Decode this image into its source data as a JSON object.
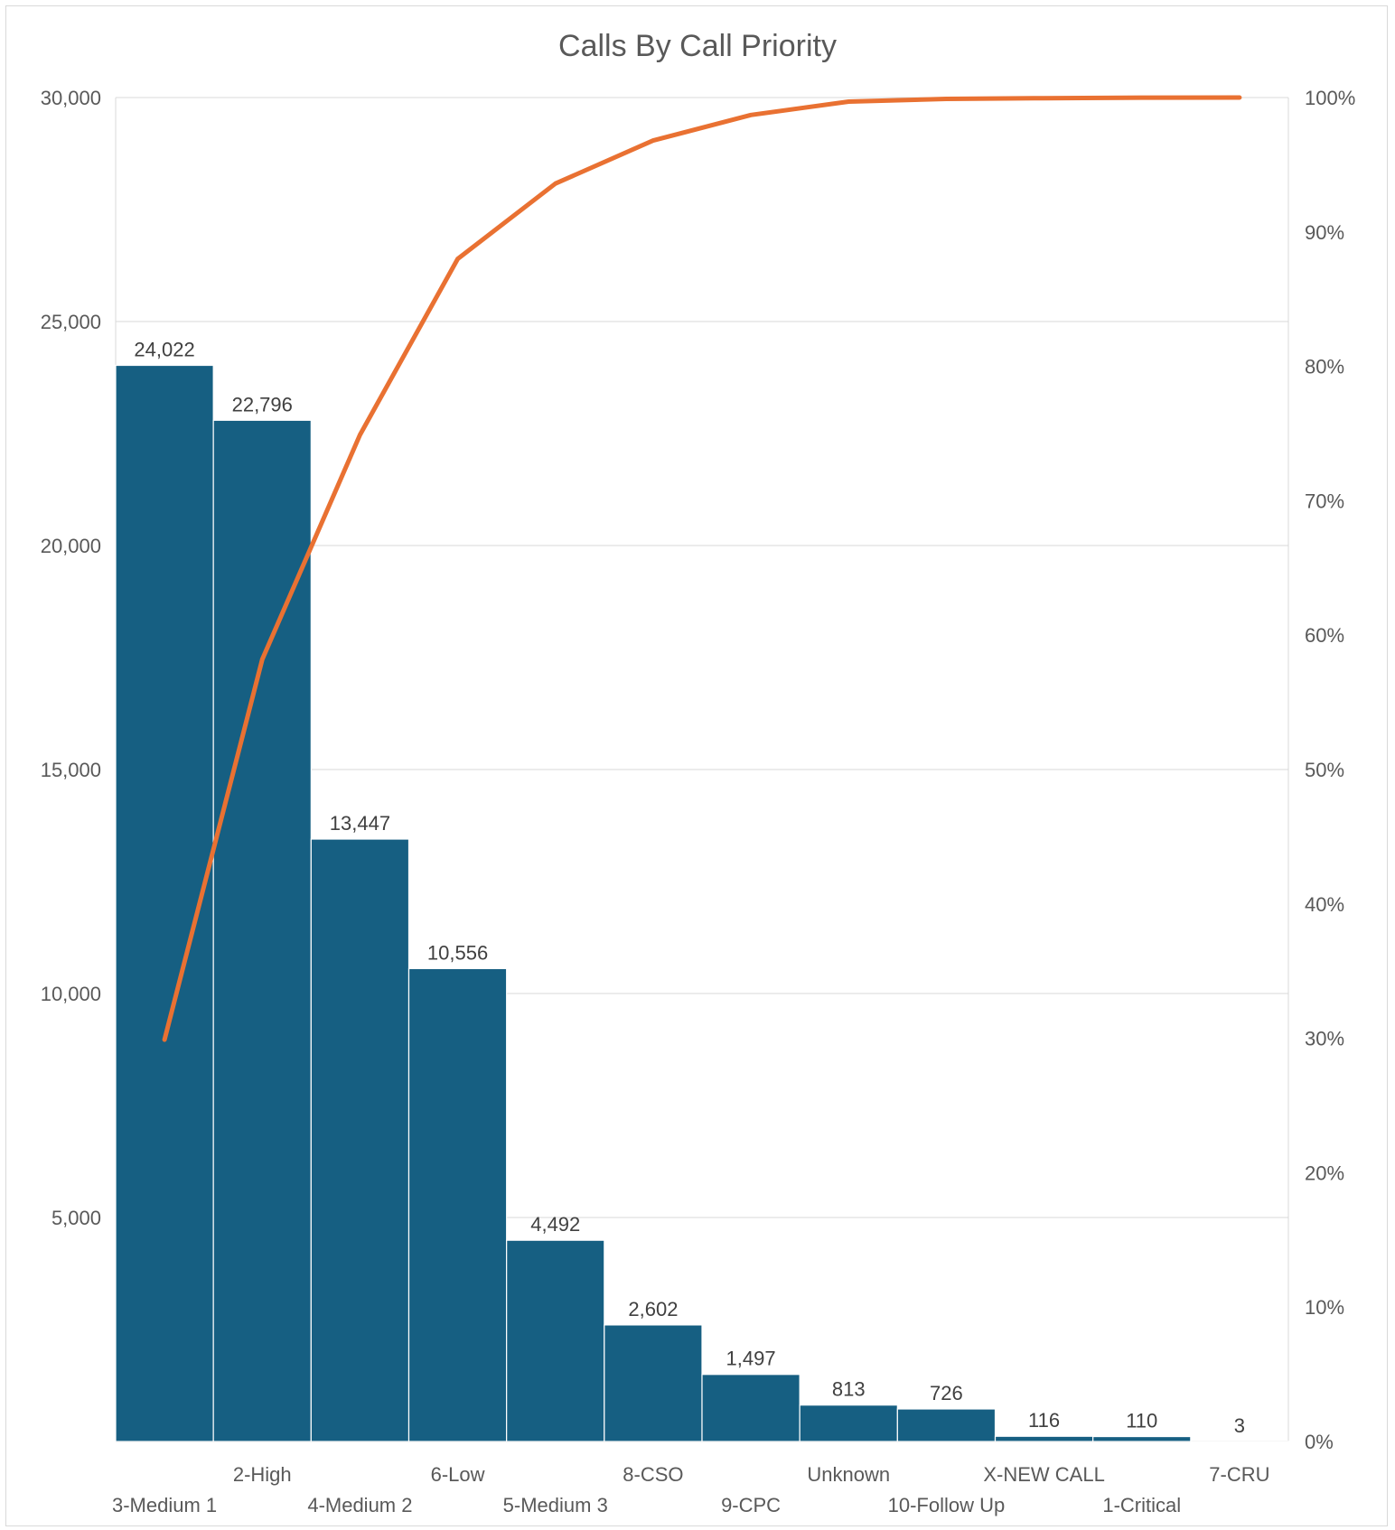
{
  "chart_data": {
    "type": "bar",
    "title": "Calls By Call Priority",
    "categories": [
      "3-Medium 1",
      "2-High",
      "4-Medium 2",
      "6-Low",
      "5-Medium 3",
      "8-CSO",
      "9-CPC",
      "Unknown",
      "10-Follow Up",
      "X-NEW CALL",
      "1-Critical",
      "7-CRU"
    ],
    "series": [
      {
        "type": "bar",
        "values": [
          24022,
          22796,
          13447,
          10556,
          4492,
          2602,
          1497,
          813,
          726,
          116,
          110,
          3
        ],
        "data_labels": [
          "24,022",
          "22,796",
          "13,447",
          "10,556",
          "4,492",
          "2,602",
          "1,497",
          "813",
          "726",
          "116",
          "110",
          "3"
        ],
        "color": "#165F82"
      },
      {
        "type": "line",
        "axis": "secondary",
        "values": [
          29.9,
          58.2,
          74.9,
          88.0,
          93.6,
          96.8,
          98.7,
          99.7,
          99.9,
          99.95,
          99.996,
          100.0
        ],
        "color": "#E97132"
      }
    ],
    "y_axis": {
      "ylim": [
        0,
        30000
      ],
      "ticks": [
        5000,
        10000,
        15000,
        20000,
        25000,
        30000
      ],
      "tick_labels": [
        "5,000",
        "10,000",
        "15,000",
        "20,000",
        "25,000",
        "30,000"
      ]
    },
    "y2_axis": {
      "ylim": [
        0,
        100
      ],
      "ticks": [
        0,
        10,
        20,
        30,
        40,
        50,
        60,
        70,
        80,
        90,
        100
      ],
      "tick_labels": [
        "0%",
        "10%",
        "20%",
        "30%",
        "40%",
        "50%",
        "60%",
        "70%",
        "80%",
        "90%",
        "100%"
      ]
    },
    "grid": true,
    "legend": "none"
  }
}
